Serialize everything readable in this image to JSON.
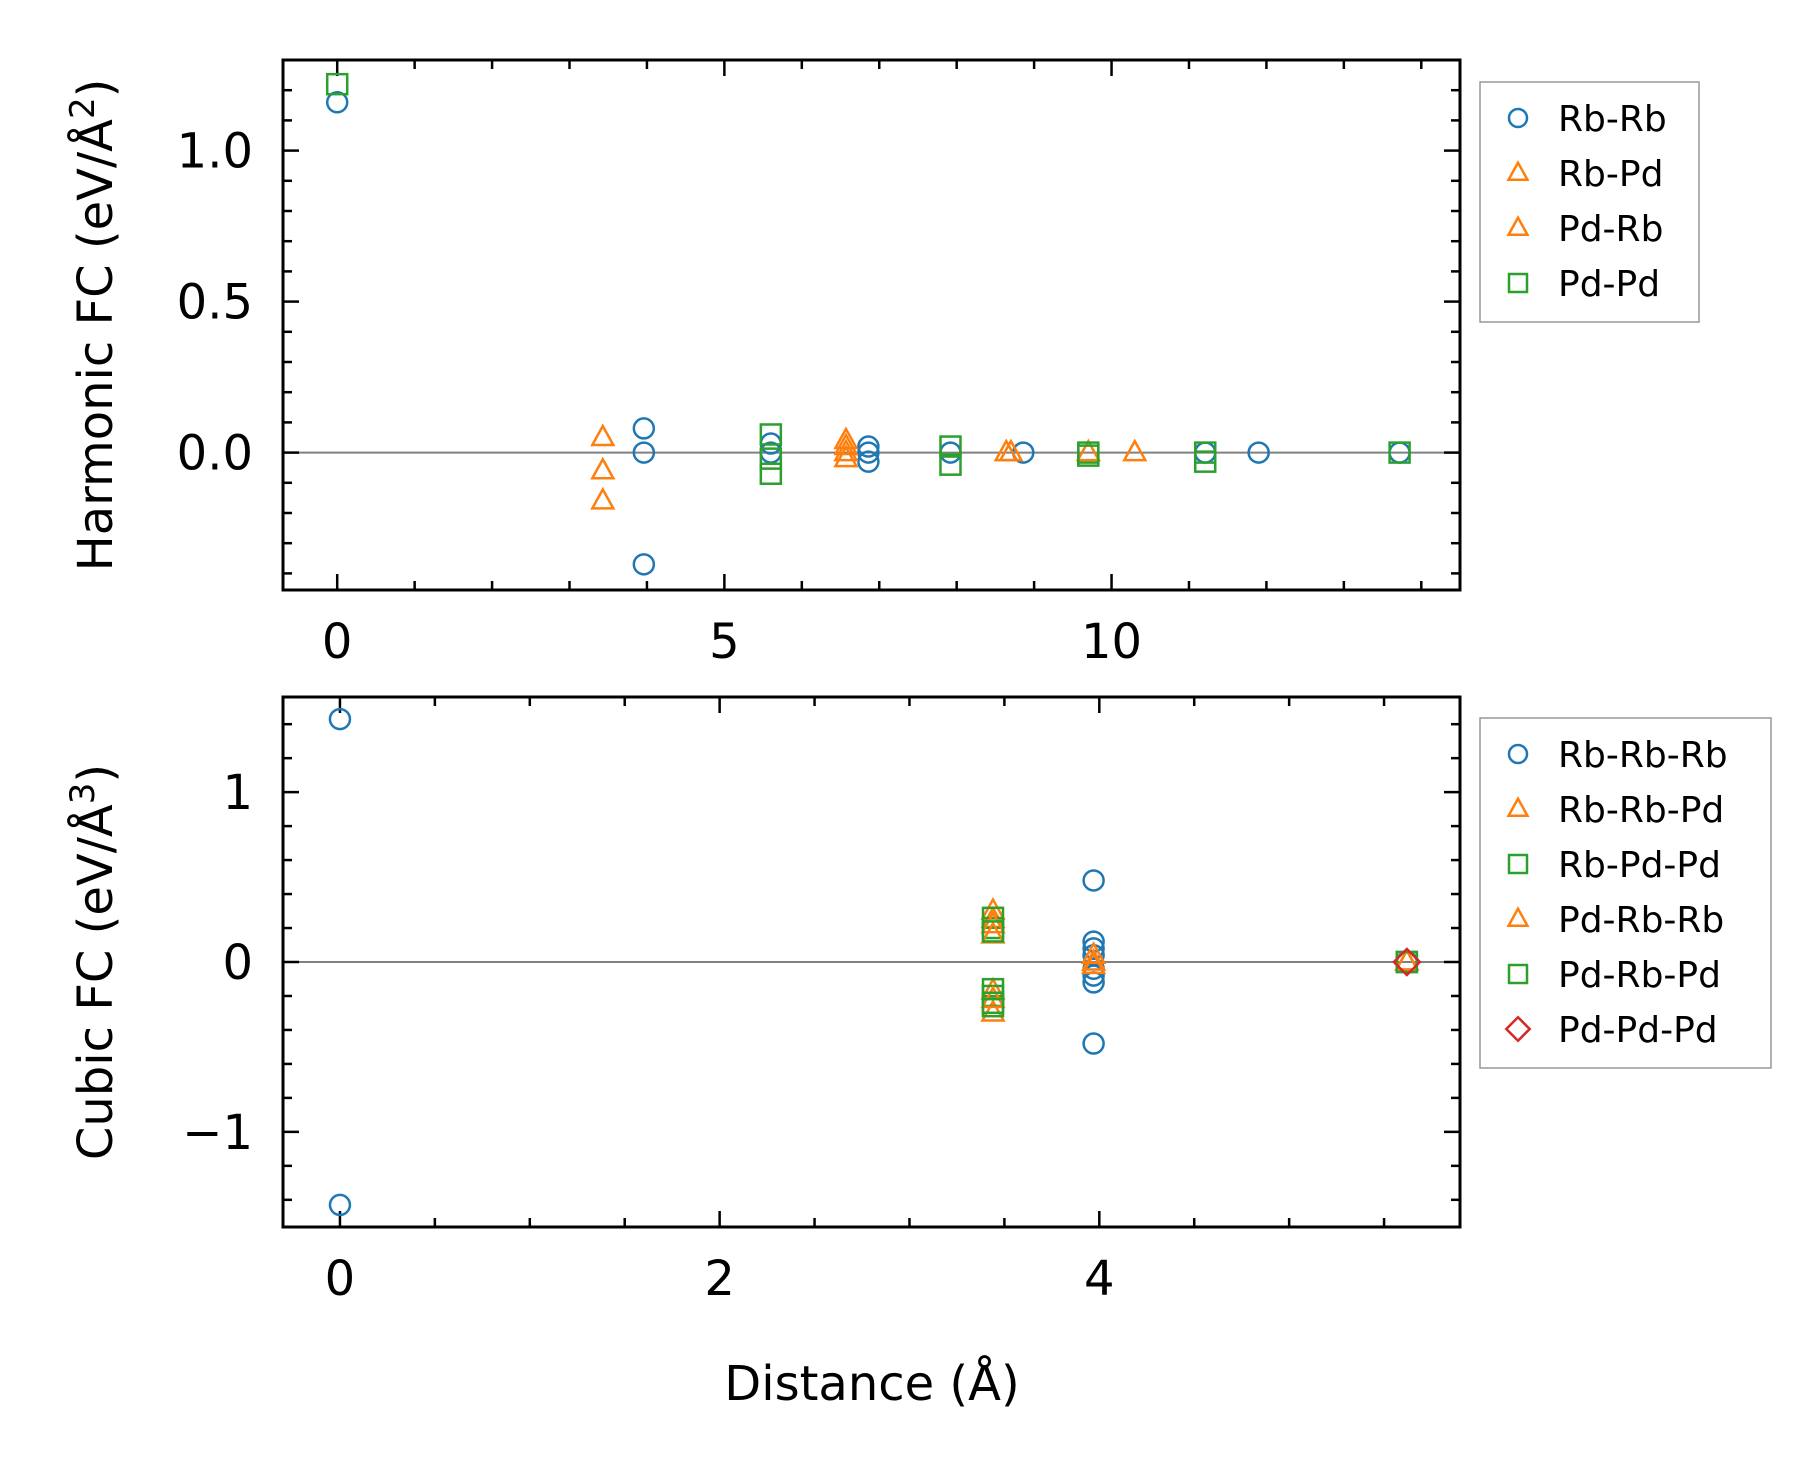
{
  "chart_data": [
    {
      "type": "scatter",
      "ylabel": "Harmonic FC (eV/Å",
      "ylabel_exponent": "2",
      "ylabel_close": ")",
      "xlim": [
        -0.7,
        14.5
      ],
      "ylim": [
        -0.455,
        1.3
      ],
      "xticks": [
        0,
        5,
        10
      ],
      "xtick_labels": [
        "0",
        "5",
        "10"
      ],
      "yticks": [
        0.0,
        0.5,
        1.0
      ],
      "ytick_labels": [
        "0.0",
        "0.5",
        "1.0"
      ],
      "legend_position": "outside-right-top",
      "series": [
        {
          "name": "Rb-Rb",
          "marker": "circle",
          "color": "#1f77b4",
          "points": [
            [
              0,
              1.16
            ],
            [
              3.96,
              0.08
            ],
            [
              3.96,
              0.0
            ],
            [
              3.96,
              -0.37
            ],
            [
              5.6,
              0.03
            ],
            [
              5.6,
              0.0
            ],
            [
              6.86,
              0.02
            ],
            [
              6.86,
              0.0
            ],
            [
              6.86,
              -0.03
            ],
            [
              7.92,
              0.0
            ],
            [
              8.86,
              0.0
            ],
            [
              11.21,
              0.0
            ],
            [
              11.9,
              0.0
            ],
            [
              13.72,
              0.0
            ]
          ]
        },
        {
          "name": "Rb-Pd",
          "marker": "triangle",
          "color": "#ff7f0e",
          "points": [
            [
              3.43,
              0.05
            ],
            [
              3.43,
              -0.06
            ],
            [
              3.43,
              -0.16
            ],
            [
              6.57,
              0.04
            ],
            [
              6.57,
              -0.02
            ],
            [
              8.64,
              0.0
            ],
            [
              10.3,
              0.0
            ]
          ]
        },
        {
          "name": "Pd-Rb",
          "marker": "triangle",
          "color": "#ff7f0e",
          "points": [
            [
              6.57,
              0.02
            ],
            [
              6.57,
              0.0
            ],
            [
              8.7,
              0.0
            ],
            [
              9.7,
              0.0
            ]
          ]
        },
        {
          "name": "Pd-Pd",
          "marker": "square",
          "color": "#2ca02c",
          "points": [
            [
              0,
              1.22
            ],
            [
              5.6,
              0.06
            ],
            [
              5.6,
              -0.02
            ],
            [
              5.6,
              -0.07
            ],
            [
              7.92,
              0.02
            ],
            [
              7.92,
              -0.04
            ],
            [
              9.7,
              0.0
            ],
            [
              9.7,
              -0.01
            ],
            [
              11.21,
              0.0
            ],
            [
              11.21,
              -0.03
            ],
            [
              13.72,
              0.0
            ]
          ]
        }
      ]
    },
    {
      "type": "scatter",
      "ylabel": "Cubic FC (eV/Å",
      "ylabel_exponent": "3",
      "ylabel_close": ")",
      "xlabel": "Distance (Å)",
      "xlim": [
        -0.3,
        5.9
      ],
      "ylim": [
        -1.56,
        1.56
      ],
      "xticks": [
        0,
        2,
        4
      ],
      "xtick_labels": [
        "0",
        "2",
        "4"
      ],
      "yticks": [
        -1,
        0,
        1
      ],
      "ytick_labels": [
        "−1",
        "0",
        "1"
      ],
      "legend_position": "outside-right-top",
      "series": [
        {
          "name": "Rb-Rb-Rb",
          "marker": "circle",
          "color": "#1f77b4",
          "points": [
            [
              0,
              1.43
            ],
            [
              0,
              -1.43
            ],
            [
              3.97,
              0.48
            ],
            [
              3.97,
              0.12
            ],
            [
              3.97,
              0.08
            ],
            [
              3.97,
              0.04
            ],
            [
              3.97,
              -0.04
            ],
            [
              3.97,
              -0.08
            ],
            [
              3.97,
              -0.12
            ],
            [
              3.97,
              -0.48
            ],
            [
              5.62,
              0.0
            ]
          ]
        },
        {
          "name": "Rb-Rb-Pd",
          "marker": "triangle",
          "color": "#ff7f0e",
          "points": [
            [
              3.44,
              0.3
            ],
            [
              3.44,
              0.25
            ],
            [
              3.44,
              -0.17
            ],
            [
              3.44,
              -0.3
            ],
            [
              3.97,
              0.04
            ],
            [
              3.97,
              -0.02
            ],
            [
              5.62,
              0.0
            ]
          ]
        },
        {
          "name": "Rb-Pd-Pd",
          "marker": "square",
          "color": "#2ca02c",
          "points": [
            [
              3.44,
              0.26
            ],
            [
              3.44,
              0.2
            ],
            [
              3.44,
              -0.2
            ],
            [
              3.44,
              -0.26
            ],
            [
              5.62,
              0.0
            ]
          ]
        },
        {
          "name": "Pd-Rb-Rb",
          "marker": "triangle",
          "color": "#ff7f0e",
          "points": [
            [
              3.44,
              0.22
            ],
            [
              3.44,
              0.16
            ],
            [
              3.44,
              -0.22
            ],
            [
              3.97,
              0.0
            ],
            [
              5.62,
              0.0
            ]
          ]
        },
        {
          "name": "Pd-Rb-Pd",
          "marker": "square",
          "color": "#2ca02c",
          "points": [
            [
              3.44,
              0.18
            ],
            [
              3.44,
              -0.16
            ],
            [
              3.44,
              -0.24
            ],
            [
              5.62,
              0.0
            ]
          ]
        },
        {
          "name": "Pd-Pd-Pd",
          "marker": "diamond",
          "color": "#d62728",
          "points": [
            [
              5.62,
              0.0
            ]
          ]
        }
      ]
    }
  ]
}
